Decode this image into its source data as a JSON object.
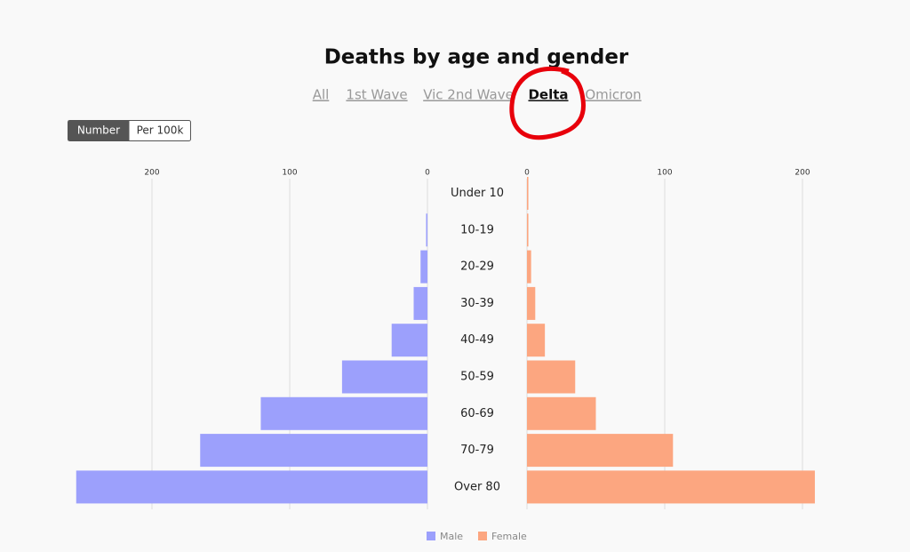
{
  "title": "Deaths by age and gender",
  "tabs": [
    {
      "label": "All",
      "active": false
    },
    {
      "label": "1st Wave",
      "active": false
    },
    {
      "label": "Vic 2nd Wave",
      "active": false
    },
    {
      "label": "Delta",
      "active": true
    },
    {
      "label": "Omicron",
      "active": false
    }
  ],
  "toggle": [
    {
      "label": "Number",
      "active": true
    },
    {
      "label": "Per 100k",
      "active": false
    }
  ],
  "chart_data": {
    "type": "pyramid",
    "categories": [
      "Under 10",
      "10-19",
      "20-29",
      "30-39",
      "40-49",
      "50-59",
      "60-69",
      "70-79",
      "Over 80"
    ],
    "series": [
      {
        "name": "Male",
        "color": "#9ca0fc",
        "values": [
          0,
          1,
          5,
          10,
          26,
          62,
          121,
          165,
          255
        ]
      },
      {
        "name": "Female",
        "color": "#fca680",
        "values": [
          1,
          1,
          3,
          6,
          13,
          35,
          50,
          106,
          209
        ]
      }
    ],
    "xlim": [
      0,
      260
    ],
    "xticks": [
      0,
      100,
      200
    ],
    "grid": true
  }
}
